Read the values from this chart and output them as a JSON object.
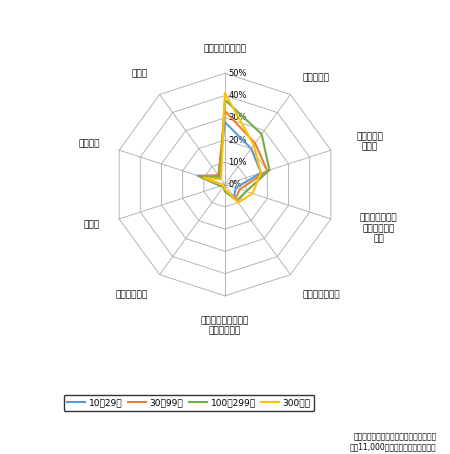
{
  "categories": [
    "用地・施設が手狭",
    "施設老朽化",
    "地代・賃料\nの負担",
    "貨物車の出入り\n等への住民の\n苦情",
    "周辺道路の混雑",
    "高速道路や幹線道路\nへのアクセス",
    "歩道の未整備",
    "その他",
    "特に無し",
    "無回答"
  ],
  "series": {
    "10～29人": [
      28,
      20,
      17,
      5,
      7,
      3,
      1,
      2,
      13,
      5
    ],
    "30～99人": [
      33,
      23,
      20,
      7,
      8,
      3,
      1,
      2,
      12,
      5
    ],
    "100～299人": [
      38,
      28,
      21,
      10,
      9,
      3,
      1,
      2,
      11,
      4
    ],
    "300人～": [
      41,
      22,
      17,
      13,
      10,
      2,
      1,
      1,
      10,
      3
    ]
  },
  "colors": {
    "10～29人": "#5b9bd5",
    "30～99人": "#ed7d31",
    "100～299人": "#70ad47",
    "300人～": "#ffc000"
  },
  "max_val": 50,
  "tick_vals": [
    0,
    10,
    20,
    30,
    40,
    50
  ],
  "tick_labels": [
    "0%",
    "10%",
    "20%",
    "30%",
    "40%",
    "50%"
  ],
  "legend_labels": [
    "10～29人",
    "30～99人",
    "100～299人",
    "300人～"
  ],
  "footnote1": "資料：物流基礎調査（意向アンケート）",
  "footnote2": "（約11,000事業所のサンプル集計）",
  "grid_color": "#aaaaaa",
  "bg_color": "#ffffff"
}
